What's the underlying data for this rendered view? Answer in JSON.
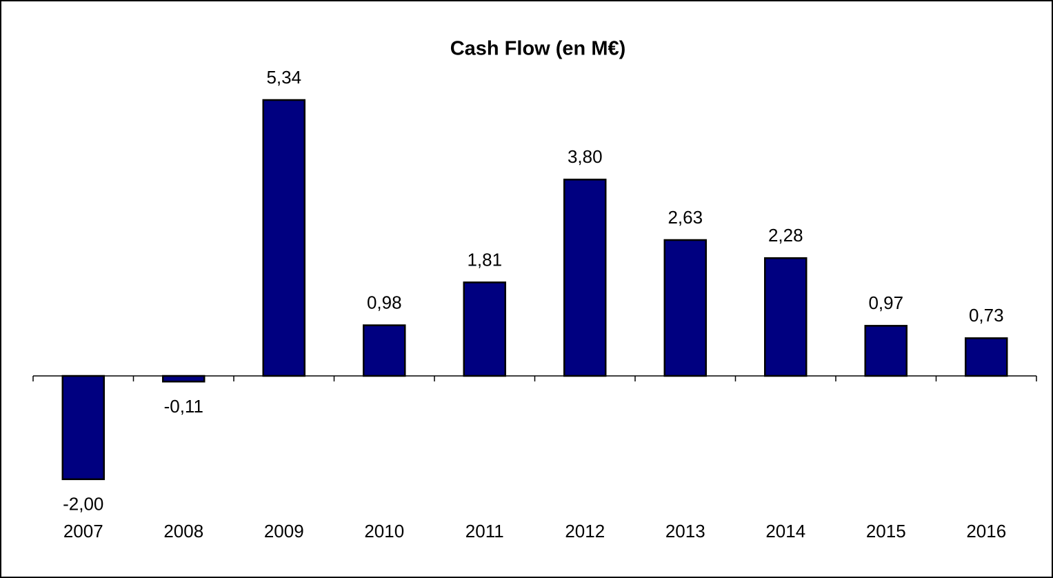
{
  "chart_data": {
    "type": "bar",
    "title": "Cash Flow (en M€)",
    "categories": [
      "2007",
      "2008",
      "2009",
      "2010",
      "2011",
      "2012",
      "2013",
      "2014",
      "2015",
      "2016"
    ],
    "values": [
      -2.0,
      -0.11,
      5.34,
      0.98,
      1.81,
      3.8,
      2.63,
      2.28,
      0.97,
      0.73
    ],
    "value_labels": [
      "-2,00",
      "-0,11",
      "5,34",
      "0,98",
      "1,81",
      "3,80",
      "2,63",
      "2,28",
      "0,97",
      "0,73"
    ],
    "color": "#000080"
  }
}
